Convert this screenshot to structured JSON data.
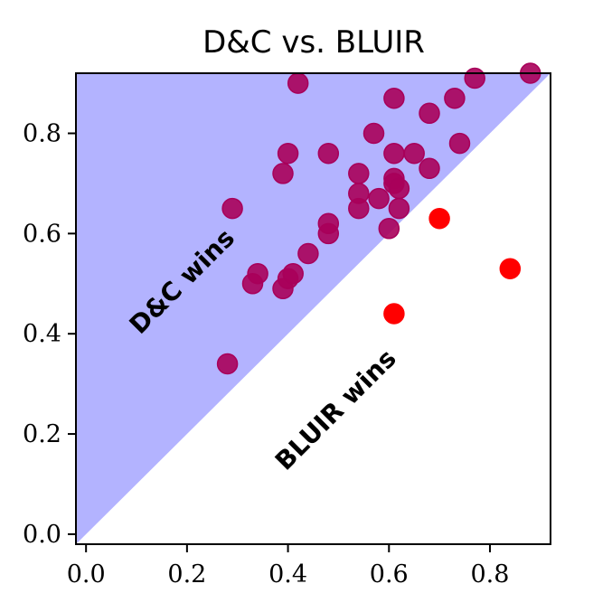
{
  "chart_data": {
    "type": "scatter",
    "title": "D&C vs. BLUIR",
    "xlabel": "",
    "ylabel": "",
    "xlim": [
      -0.02,
      0.92
    ],
    "ylim": [
      -0.02,
      0.92
    ],
    "xticks": [
      "0.0",
      "0.2",
      "0.4",
      "0.6",
      "0.8"
    ],
    "yticks": [
      "0.0",
      "0.2",
      "0.4",
      "0.6",
      "0.8"
    ],
    "grid": false,
    "diagonal": "y = x",
    "region_labels": {
      "upper": "D&C wins",
      "lower": "BLUIR wins"
    },
    "colors": {
      "upper_region": "#b3b3ff",
      "point_above": "#a8005a",
      "point_below": "#ff0000"
    },
    "points": [
      {
        "x": 0.28,
        "y": 0.34
      },
      {
        "x": 0.29,
        "y": 0.65
      },
      {
        "x": 0.33,
        "y": 0.5
      },
      {
        "x": 0.34,
        "y": 0.52
      },
      {
        "x": 0.39,
        "y": 0.49
      },
      {
        "x": 0.4,
        "y": 0.51
      },
      {
        "x": 0.41,
        "y": 0.52
      },
      {
        "x": 0.39,
        "y": 0.72
      },
      {
        "x": 0.4,
        "y": 0.76
      },
      {
        "x": 0.42,
        "y": 0.9
      },
      {
        "x": 0.44,
        "y": 0.56
      },
      {
        "x": 0.48,
        "y": 0.6
      },
      {
        "x": 0.48,
        "y": 0.62
      },
      {
        "x": 0.48,
        "y": 0.76
      },
      {
        "x": 0.54,
        "y": 0.65
      },
      {
        "x": 0.54,
        "y": 0.68
      },
      {
        "x": 0.54,
        "y": 0.72
      },
      {
        "x": 0.57,
        "y": 0.8
      },
      {
        "x": 0.58,
        "y": 0.67
      },
      {
        "x": 0.6,
        "y": 0.61
      },
      {
        "x": 0.61,
        "y": 0.71
      },
      {
        "x": 0.61,
        "y": 0.7
      },
      {
        "x": 0.62,
        "y": 0.69
      },
      {
        "x": 0.62,
        "y": 0.65
      },
      {
        "x": 0.61,
        "y": 0.76
      },
      {
        "x": 0.61,
        "y": 0.87
      },
      {
        "x": 0.65,
        "y": 0.76
      },
      {
        "x": 0.68,
        "y": 0.73
      },
      {
        "x": 0.68,
        "y": 0.84
      },
      {
        "x": 0.73,
        "y": 0.87
      },
      {
        "x": 0.74,
        "y": 0.78
      },
      {
        "x": 0.77,
        "y": 0.91
      },
      {
        "x": 0.88,
        "y": 0.92
      },
      {
        "x": 0.61,
        "y": 0.44
      },
      {
        "x": 0.7,
        "y": 0.63
      },
      {
        "x": 0.84,
        "y": 0.53
      }
    ]
  }
}
